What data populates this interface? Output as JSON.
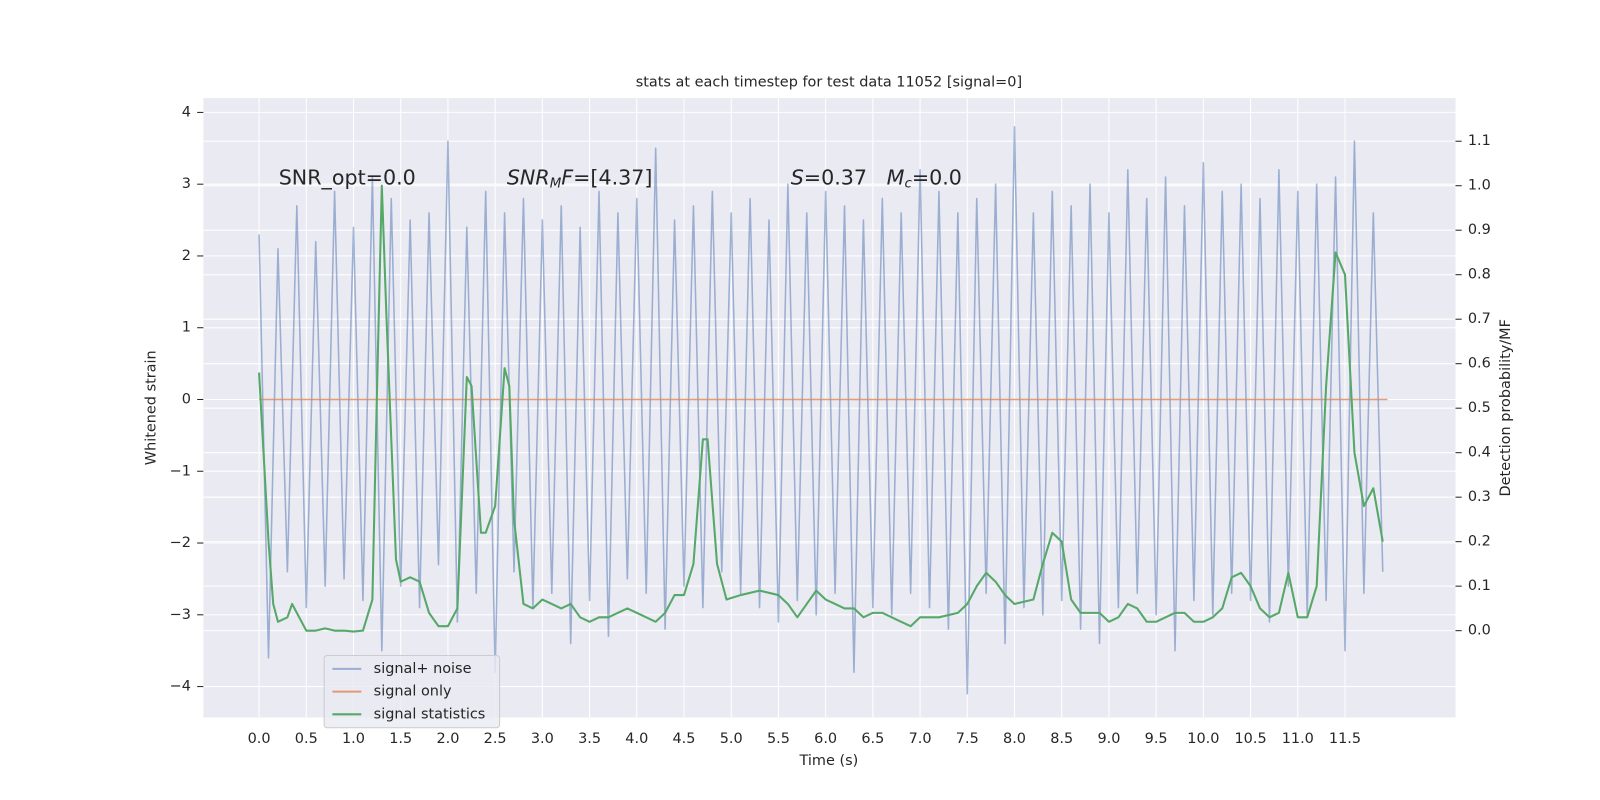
{
  "chart_data": {
    "type": "line",
    "title": "stats at each timestep for test data 11052 [signal=0]",
    "xlabel": "Time (s)",
    "ylabel": "Whitened strain",
    "y2label": "Detection probability/MF",
    "annotations": [
      [
        [
          "SNR_opt=0.0",
          "n"
        ]
      ],
      [
        [
          "SNR",
          "i"
        ],
        [
          "M",
          "sub"
        ],
        [
          "F",
          "i"
        ],
        [
          "=[4.37]",
          "n"
        ]
      ],
      [
        [
          "S",
          "i"
        ],
        [
          "=0.37   ",
          "n"
        ],
        [
          "M",
          "i"
        ],
        [
          "c",
          "sub"
        ],
        [
          "=0.0",
          "n"
        ]
      ]
    ],
    "xlim": [
      -0.59,
      12.67
    ],
    "ylim": [
      -4.43,
      4.2
    ],
    "y2lim": [
      -0.195,
      1.197
    ],
    "xticks": [
      {
        "value": 0,
        "label": "0.0"
      },
      0.5,
      {
        "value": 1,
        "label": "1.0"
      },
      1.5,
      {
        "value": 2,
        "label": "2.0"
      },
      2.5,
      {
        "value": 3,
        "label": "3.0"
      },
      3.5,
      {
        "value": 4,
        "label": "4.0"
      },
      4.5,
      {
        "value": 5,
        "label": "5.0"
      },
      5.5,
      {
        "value": 6,
        "label": "6.0"
      },
      6.5,
      {
        "value": 7,
        "label": "7.0"
      },
      7.5,
      {
        "value": 8,
        "label": "8.0"
      },
      8.5,
      {
        "value": 9,
        "label": "9.0"
      },
      9.5,
      {
        "value": 10,
        "label": "10.0"
      },
      10.5,
      {
        "value": 11,
        "label": "11.0"
      },
      11.5
    ],
    "yticks": [
      {
        "value": -4,
        "label": "−4"
      },
      {
        "value": -3,
        "label": "−3"
      },
      {
        "value": -2,
        "label": "−2"
      },
      {
        "value": -1,
        "label": "−1"
      },
      0,
      1,
      2,
      3,
      4
    ],
    "y2ticks": [
      {
        "value": 0,
        "label": "0.0"
      },
      0.1,
      0.2,
      0.3,
      0.4,
      0.5,
      0.6,
      0.7,
      0.8,
      0.9,
      {
        "value": 1,
        "label": "1.0"
      },
      1.1
    ],
    "grid": true,
    "legend": "lower left",
    "series": [
      {
        "name": "signal+ noise",
        "color": "#4c72b0",
        "opacity": 0.5,
        "x": [
          0,
          0.1,
          0.2,
          0.3,
          0.4,
          0.5,
          0.6,
          0.7,
          0.8,
          0.9,
          1,
          1.1,
          1.2,
          1.3,
          1.4,
          1.5,
          1.6,
          1.7,
          1.8,
          1.9,
          2,
          2.1,
          2.2,
          2.3,
          2.4,
          2.5,
          2.6,
          2.7,
          2.8,
          2.9,
          3,
          3.1,
          3.2,
          3.3,
          3.4,
          3.5,
          3.6,
          3.7,
          3.8,
          3.9,
          4,
          4.1,
          4.2,
          4.3,
          4.4,
          4.5,
          4.6,
          4.7,
          4.8,
          4.9,
          5,
          5.1,
          5.2,
          5.3,
          5.4,
          5.5,
          5.6,
          5.7,
          5.8,
          5.9,
          6,
          6.1,
          6.2,
          6.3,
          6.4,
          6.5,
          6.6,
          6.7,
          6.8,
          6.9,
          7,
          7.1,
          7.2,
          7.3,
          7.4,
          7.5,
          7.6,
          7.7,
          7.8,
          7.9,
          8,
          8.1,
          8.2,
          8.3,
          8.4,
          8.5,
          8.6,
          8.7,
          8.8,
          8.9,
          9,
          9.1,
          9.2,
          9.3,
          9.4,
          9.5,
          9.6,
          9.7,
          9.8,
          9.9,
          10,
          10.1,
          10.2,
          10.3,
          10.4,
          10.5,
          10.6,
          10.7,
          10.8,
          10.9,
          11,
          11.1,
          11.2,
          11.3,
          11.4,
          11.5,
          11.6,
          11.7,
          11.8,
          11.9
        ],
        "values": [
          2.3,
          -3.6,
          2.1,
          -2.4,
          2.7,
          -2.9,
          2.2,
          -2.6,
          2.9,
          -2.5,
          2.4,
          -2.8,
          3.1,
          -3.5,
          2.8,
          -2.6,
          2.5,
          -2.9,
          2.6,
          -2.3,
          3.6,
          -3.1,
          2.4,
          -2.7,
          2.9,
          -3.8,
          2.6,
          -2.4,
          2.8,
          -2.9,
          2.5,
          -2.7,
          2.7,
          -3.4,
          2.4,
          -2.8,
          2.9,
          -3.3,
          2.6,
          -2.5,
          2.8,
          -2.7,
          3.5,
          -3.2,
          2.5,
          -2.6,
          2.7,
          -2.9,
          2.9,
          -2.4,
          2.6,
          -2.7,
          2.8,
          -2.9,
          2.5,
          -3.1,
          3.0,
          -2.8,
          2.6,
          -3.0,
          2.9,
          -2.7,
          2.7,
          -3.8,
          2.5,
          -2.9,
          2.8,
          -3.0,
          2.6,
          -2.7,
          3.2,
          -2.9,
          2.9,
          -3.2,
          2.6,
          -4.1,
          2.8,
          -2.7,
          3.0,
          -3.4,
          3.8,
          -2.9,
          2.6,
          -3.0,
          2.9,
          -2.8,
          2.7,
          -3.2,
          3.0,
          -3.4,
          2.6,
          -2.9,
          3.2,
          -2.7,
          2.8,
          -3.0,
          3.1,
          -3.5,
          2.7,
          -2.8,
          3.3,
          -3.0,
          2.9,
          -2.7,
          3.0,
          -2.8,
          2.8,
          -3.1,
          3.2,
          -2.6,
          2.9,
          -3.0,
          3.0,
          -2.8,
          3.1,
          -3.5,
          3.6,
          -2.7,
          2.6,
          -2.4
        ]
      },
      {
        "name": "signal only",
        "color": "#dd8452",
        "opacity": 0.8,
        "x": [
          0,
          11.95
        ],
        "values": [
          0,
          0
        ]
      },
      {
        "name": "signal statistics",
        "color": "#55a868",
        "opacity": 1,
        "axis": "y2",
        "x": [
          0,
          0.1,
          0.15,
          0.2,
          0.3,
          0.35,
          0.45,
          0.5,
          0.6,
          0.7,
          0.8,
          0.9,
          1,
          1.1,
          1.2,
          1.25,
          1.3,
          1.35,
          1.45,
          1.5,
          1.6,
          1.7,
          1.8,
          1.9,
          2,
          2.1,
          2.2,
          2.25,
          2.35,
          2.4,
          2.5,
          2.6,
          2.65,
          2.7,
          2.8,
          2.9,
          3,
          3.1,
          3.2,
          3.3,
          3.4,
          3.5,
          3.6,
          3.7,
          3.8,
          3.9,
          4,
          4.1,
          4.2,
          4.3,
          4.4,
          4.5,
          4.6,
          4.7,
          4.75,
          4.85,
          4.95,
          5.1,
          5.3,
          5.5,
          5.6,
          5.7,
          5.8,
          5.9,
          6,
          6.1,
          6.2,
          6.3,
          6.4,
          6.5,
          6.6,
          6.7,
          6.8,
          6.9,
          7,
          7.2,
          7.4,
          7.5,
          7.6,
          7.7,
          7.8,
          7.9,
          8,
          8.2,
          8.3,
          8.4,
          8.5,
          8.6,
          8.7,
          8.8,
          8.9,
          9,
          9.1,
          9.2,
          9.3,
          9.4,
          9.5,
          9.6,
          9.7,
          9.8,
          9.9,
          10,
          10.1,
          10.2,
          10.3,
          10.4,
          10.5,
          10.6,
          10.7,
          10.8,
          10.9,
          11,
          11.1,
          11.2,
          11.3,
          11.4,
          11.5,
          11.6,
          11.7,
          11.8,
          11.9
        ],
        "values": [
          0.58,
          0.2,
          0.06,
          0.02,
          0.03,
          0.06,
          0.02,
          0,
          0,
          0.005,
          0,
          0,
          -0.002,
          0,
          0.07,
          0.55,
          1,
          0.7,
          0.16,
          0.11,
          0.12,
          0.11,
          0.04,
          0.01,
          0.01,
          0.05,
          0.57,
          0.55,
          0.22,
          0.22,
          0.28,
          0.59,
          0.55,
          0.25,
          0.06,
          0.05,
          0.07,
          0.06,
          0.05,
          0.06,
          0.03,
          0.02,
          0.03,
          0.03,
          0.04,
          0.05,
          0.04,
          0.03,
          0.02,
          0.04,
          0.08,
          0.08,
          0.15,
          0.43,
          0.43,
          0.15,
          0.07,
          0.08,
          0.09,
          0.08,
          0.06,
          0.03,
          0.06,
          0.09,
          0.07,
          0.06,
          0.05,
          0.05,
          0.03,
          0.04,
          0.04,
          0.03,
          0.02,
          0.01,
          0.03,
          0.03,
          0.04,
          0.06,
          0.1,
          0.13,
          0.11,
          0.08,
          0.06,
          0.07,
          0.15,
          0.22,
          0.2,
          0.07,
          0.04,
          0.04,
          0.04,
          0.02,
          0.03,
          0.06,
          0.05,
          0.02,
          0.02,
          0.03,
          0.04,
          0.04,
          0.02,
          0.02,
          0.03,
          0.05,
          0.12,
          0.13,
          0.1,
          0.05,
          0.03,
          0.04,
          0.13,
          0.03,
          0.03,
          0.1,
          0.55,
          0.85,
          0.8,
          0.4,
          0.28,
          0.32,
          0.2
        ]
      }
    ]
  }
}
